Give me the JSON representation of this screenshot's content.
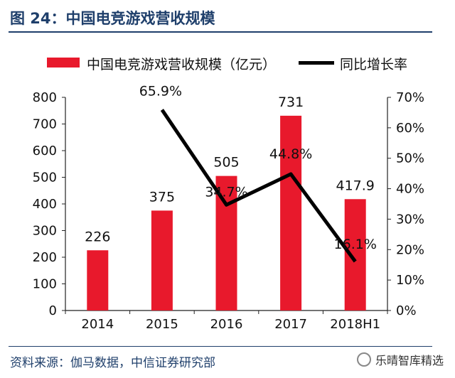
{
  "title": "图 24：中国电竞游戏营收规模",
  "legend": {
    "bar_label": "中国电竞游戏营收规模（亿元）",
    "line_label": "同比增长率"
  },
  "source": "资料来源：伽马数据，中信证券研究部",
  "watermark": "乐晴智库精选",
  "colors": {
    "bar": "#e8192c",
    "line": "#000000",
    "title": "#1f3f6b"
  },
  "chart_data": {
    "type": "bar",
    "categories": [
      "2014",
      "2015",
      "2016",
      "2017",
      "2018H1"
    ],
    "series": [
      {
        "name": "中国电竞游戏营收规模（亿元）",
        "type": "bar",
        "axis": "left",
        "values": [
          226,
          375,
          505,
          731,
          417.9
        ],
        "labels": [
          "226",
          "375",
          "505",
          "731",
          "417.9"
        ]
      },
      {
        "name": "同比增长率",
        "type": "line",
        "axis": "right",
        "values": [
          null,
          65.9,
          34.7,
          44.8,
          16.1
        ],
        "labels": [
          "",
          "65.9%",
          "34.7%",
          "44.8%",
          "16.1%"
        ]
      }
    ],
    "y_left": {
      "min": 0,
      "max": 800,
      "ticks": [
        "0",
        "100",
        "200",
        "300",
        "400",
        "500",
        "600",
        "700",
        "800"
      ]
    },
    "y_right": {
      "min": 0,
      "max": 70,
      "ticks": [
        "0%",
        "10%",
        "20%",
        "30%",
        "40%",
        "50%",
        "60%",
        "70%"
      ]
    },
    "grid": false,
    "legend_position": "top"
  }
}
